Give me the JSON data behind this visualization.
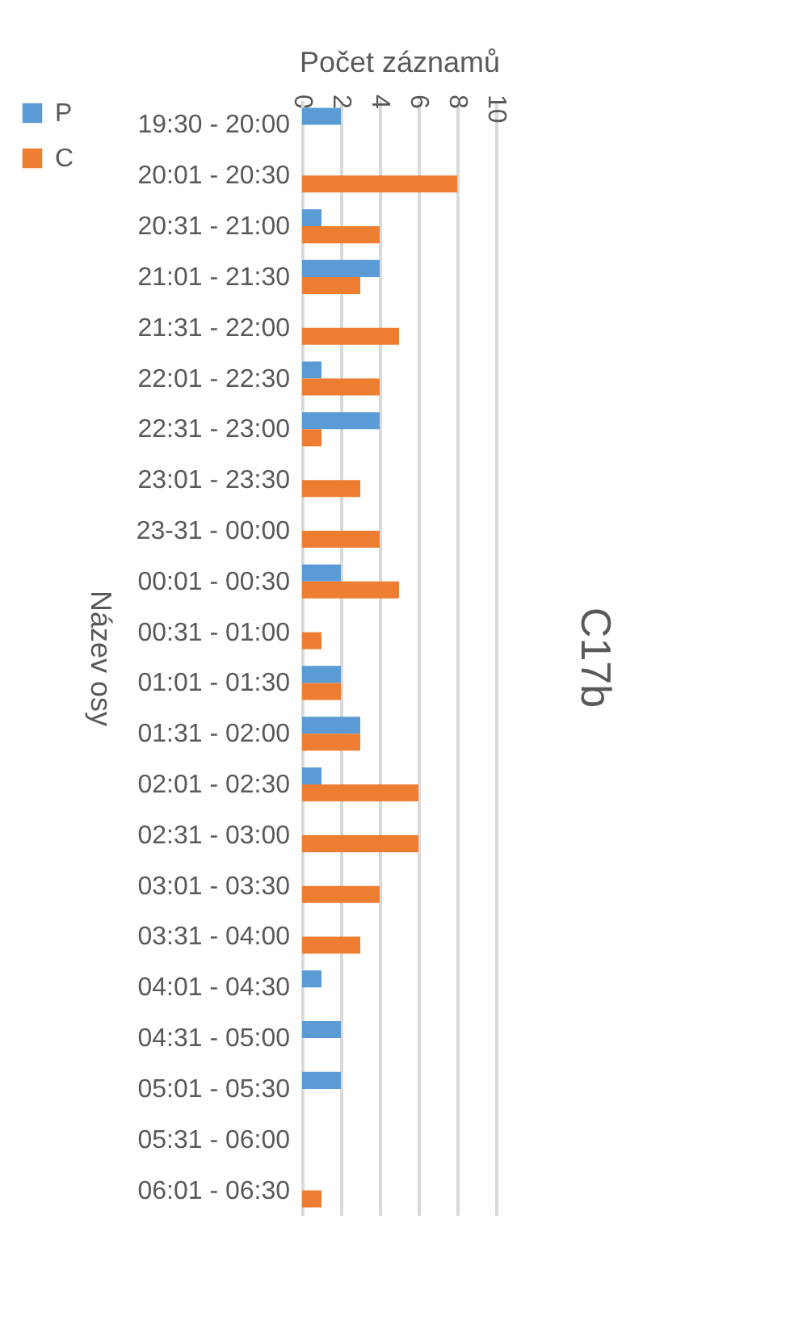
{
  "chart_data": {
    "type": "bar",
    "orientation": "horizontal",
    "title": "C17b",
    "xlabel": "Počet záznamů",
    "ylabel": "Název osy",
    "categories": [
      "19:30 - 20:00",
      "20:01 - 20:30",
      "20:31 - 21:00",
      "21:01 - 21:30",
      "21:31 - 22:00",
      "22:01 - 22:30",
      "22:31 - 23:00",
      "23:01 - 23:30",
      "23-31 - 00:00",
      "00:01 - 00:30",
      "00:31 - 01:00",
      "01:01 - 01:30",
      "01:31 - 02:00",
      "02:01 - 02:30",
      "02:31 - 03:00",
      "03:01 - 03:30",
      "03:31 - 04:00",
      "04:01 - 04:30",
      "04:31 - 05:00",
      "05:01 - 05:30",
      "05:31 - 06:00",
      "06:01 - 06:30"
    ],
    "series": [
      {
        "name": "P",
        "color": "#5b9bd5",
        "values": [
          2,
          null,
          1,
          4,
          null,
          1,
          4,
          null,
          null,
          2,
          null,
          2,
          3,
          1,
          null,
          null,
          null,
          1,
          2,
          2,
          null,
          null
        ]
      },
      {
        "name": "C",
        "color": "#ed7d31",
        "values": [
          null,
          8,
          4,
          3,
          5,
          4,
          1,
          3,
          4,
          5,
          1,
          2,
          3,
          6,
          6,
          4,
          3,
          null,
          null,
          null,
          null,
          1
        ]
      }
    ],
    "xlim": [
      0,
      10
    ],
    "xticks": [
      0,
      2,
      4,
      6,
      8,
      10
    ],
    "grid": "x",
    "legend": "left"
  }
}
